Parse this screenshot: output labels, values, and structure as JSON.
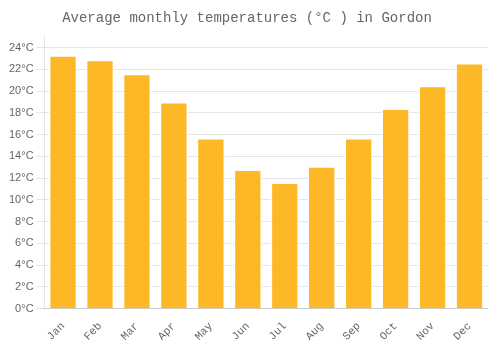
{
  "chart_data": {
    "type": "bar",
    "title": "Average monthly temperatures (°C ) in Gordon",
    "categories": [
      "Jan",
      "Feb",
      "Mar",
      "Apr",
      "May",
      "Jun",
      "Jul",
      "Aug",
      "Sep",
      "Oct",
      "Nov",
      "Dec"
    ],
    "values": [
      23.3,
      22.9,
      21.6,
      19.0,
      15.7,
      12.8,
      11.6,
      13.1,
      15.7,
      18.4,
      20.5,
      22.6
    ],
    "color": "#FDB827",
    "ylim": [
      0,
      25
    ],
    "yticks": [
      {
        "value": 0,
        "label": "0°C"
      },
      {
        "value": 2,
        "label": "2°C"
      },
      {
        "value": 4,
        "label": "4°C"
      },
      {
        "value": 6,
        "label": "6°C"
      },
      {
        "value": 8,
        "label": "8°C"
      },
      {
        "value": 10,
        "label": "10°C"
      },
      {
        "value": 12,
        "label": "12°C"
      },
      {
        "value": 14,
        "label": "14°C"
      },
      {
        "value": 16,
        "label": "16°C"
      },
      {
        "value": 18,
        "label": "18°C"
      },
      {
        "value": 20,
        "label": "20°C"
      },
      {
        "value": 22,
        "label": "22°C"
      },
      {
        "value": 24,
        "label": "24°C"
      }
    ],
    "grid": true
  }
}
